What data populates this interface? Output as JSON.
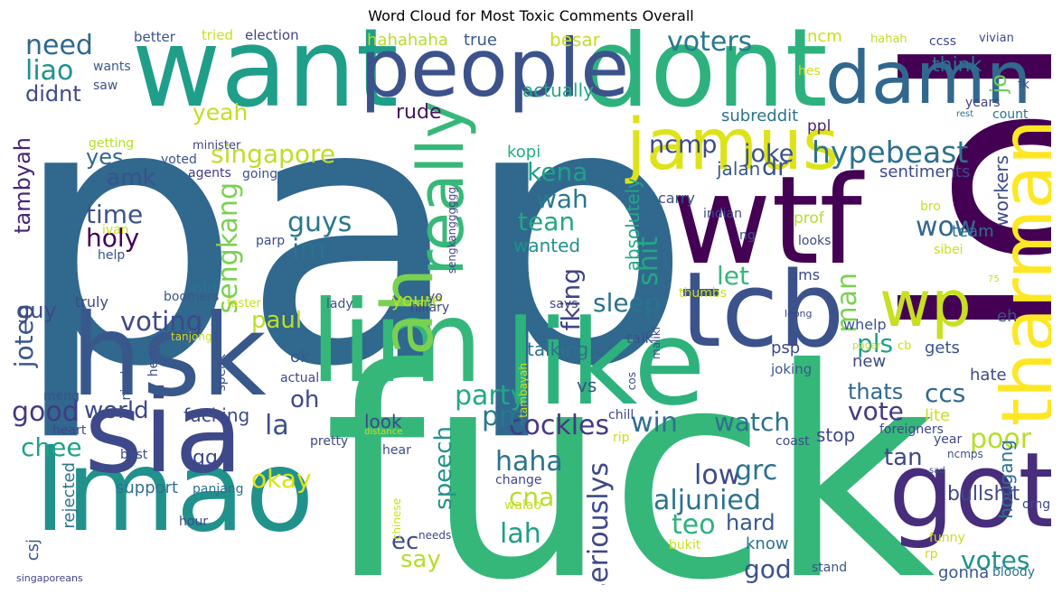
{
  "figure": {
    "title": "Word Cloud for Most Toxic Comments Overall"
  },
  "words": [
    {
      "text": "pap",
      "color": "#30688e"
    },
    {
      "text": "fuck",
      "color": "#35b779"
    },
    {
      "text": "lol",
      "color": "#440154"
    },
    {
      "text": "want",
      "color": "#1f9e89"
    },
    {
      "text": "dont",
      "color": "#2db27d"
    },
    {
      "text": "wtf",
      "color": "#440154"
    },
    {
      "text": "lmao",
      "color": "#21918c"
    },
    {
      "text": "sia",
      "color": "#3e4989"
    },
    {
      "text": "hsk",
      "color": "#38588c"
    },
    {
      "text": "like",
      "color": "#2db27d"
    },
    {
      "text": "people",
      "color": "#3b528b"
    },
    {
      "text": "lim",
      "color": "#35b779"
    },
    {
      "text": "tcb",
      "color": "#3b528b"
    },
    {
      "text": "got",
      "color": "#472d7b"
    },
    {
      "text": "jamus",
      "color": "#dde318"
    },
    {
      "text": "tharman",
      "color": "#fde725"
    },
    {
      "text": "damn",
      "color": "#31688e"
    },
    {
      "text": "really",
      "color": "#37b878"
    },
    {
      "text": "wp",
      "color": "#c8e020"
    },
    {
      "text": "ah",
      "color": "#7ad151"
    },
    {
      "text": "hypebeast",
      "color": "#2c728e"
    },
    {
      "text": "party",
      "color": "#22a884"
    },
    {
      "text": "cockles",
      "color": "#443a83"
    },
    {
      "text": "aljunied",
      "color": "#2c728e"
    },
    {
      "text": "voters",
      "color": "#2a788e"
    },
    {
      "text": "singapore",
      "color": "#bddf26"
    },
    {
      "text": "need",
      "color": "#31688e"
    },
    {
      "text": "liao",
      "color": "#21918c"
    },
    {
      "text": "didnt",
      "color": "#3e4989"
    },
    {
      "text": "yeah",
      "color": "#c2df23"
    },
    {
      "text": "amk",
      "color": "#3b528b"
    },
    {
      "text": "time",
      "color": "#3b528b"
    },
    {
      "text": "holy",
      "color": "#440154"
    },
    {
      "text": "yes",
      "color": "#31688e"
    },
    {
      "text": "guys",
      "color": "#2a788e"
    },
    {
      "text": "im",
      "color": "#2c728e"
    },
    {
      "text": "voting",
      "color": "#3e4989"
    },
    {
      "text": "paul",
      "color": "#bddf26"
    },
    {
      "text": "sengkang",
      "color": "#7ad151"
    },
    {
      "text": "ncmp",
      "color": "#3e4989"
    },
    {
      "text": "jalan",
      "color": "#38598c"
    },
    {
      "text": "dr",
      "color": "#3b528b"
    },
    {
      "text": "wah",
      "color": "#2a788e"
    },
    {
      "text": "kena",
      "color": "#1fa187"
    },
    {
      "text": "kopi",
      "color": "#26ad81"
    },
    {
      "text": "tean",
      "color": "#22a884"
    },
    {
      "text": "wanted",
      "color": "#21918c"
    },
    {
      "text": "shit",
      "color": "#22a884"
    },
    {
      "text": "joke",
      "color": "#3b528b"
    },
    {
      "text": "wow",
      "color": "#31688e"
    },
    {
      "text": "sleep",
      "color": "#2c728e"
    },
    {
      "text": "let",
      "color": "#35b779"
    },
    {
      "text": "man",
      "color": "#7ad151"
    },
    {
      "text": "tambyah",
      "color": "#482475"
    },
    {
      "text": "joteo",
      "color": "#39568c"
    },
    {
      "text": "guy",
      "color": "#3e4989"
    },
    {
      "text": "good",
      "color": "#443983"
    },
    {
      "text": "world",
      "color": "#3e4989"
    },
    {
      "text": "chee",
      "color": "#1fa187"
    },
    {
      "text": "pm",
      "color": "#2a788e"
    },
    {
      "text": "win",
      "color": "#2d708e"
    },
    {
      "text": "watch",
      "color": "#2c728e"
    },
    {
      "text": "vote",
      "color": "#443983"
    },
    {
      "text": "ccs",
      "color": "#31688e"
    },
    {
      "text": "thats",
      "color": "#31688e"
    },
    {
      "text": "poor",
      "color": "#b5de2b"
    },
    {
      "text": "tan",
      "color": "#3e4989"
    },
    {
      "text": "pls",
      "color": "#1fa187"
    },
    {
      "text": "la",
      "color": "#3b528b"
    },
    {
      "text": "oh",
      "color": "#3e4989"
    },
    {
      "text": "okay",
      "color": "#dde318"
    },
    {
      "text": "haha",
      "color": "#2c728e"
    },
    {
      "text": "speech",
      "color": "#21918c"
    },
    {
      "text": "lah",
      "color": "#1f9e89"
    },
    {
      "text": "low",
      "color": "#3e4989"
    },
    {
      "text": "grc",
      "color": "#2c728e"
    },
    {
      "text": "teo",
      "color": "#2db27d"
    },
    {
      "text": "hard",
      "color": "#38598c"
    },
    {
      "text": "votes",
      "color": "#21918c"
    },
    {
      "text": "god",
      "color": "#3b528b"
    },
    {
      "text": "seriouslys",
      "color": "#3e4989"
    },
    {
      "text": "fking",
      "color": "#414487"
    },
    {
      "text": "cna",
      "color": "#b5de2b"
    },
    {
      "text": "ec",
      "color": "#3e4989"
    },
    {
      "text": "say",
      "color": "#b5de2b"
    },
    {
      "text": "gg",
      "color": "#3e4989"
    },
    {
      "text": "hougang",
      "color": "#2c728e"
    },
    {
      "text": "bullshit",
      "color": "#3e4989"
    },
    {
      "text": "gonna",
      "color": "#39568c"
    },
    {
      "text": "eh",
      "color": "#3b528b"
    },
    {
      "text": "jo",
      "color": "#6ccd5a"
    },
    {
      "text": "workers",
      "color": "#3e4989"
    },
    {
      "text": "sentiments",
      "color": "#3e4989"
    },
    {
      "text": "subreddit",
      "color": "#2c728e"
    },
    {
      "text": "actually",
      "color": "#22a884"
    },
    {
      "text": "rude",
      "color": "#471164"
    },
    {
      "text": "true",
      "color": "#38598c"
    },
    {
      "text": "hahahaha",
      "color": "#b5de2b"
    },
    {
      "text": "besar",
      "color": "#c2df23"
    },
    {
      "text": "ncm",
      "color": "#c8e020"
    },
    {
      "text": "think",
      "color": "#2c728e"
    },
    {
      "text": "better",
      "color": "#3b528b"
    },
    {
      "text": "tried",
      "color": "#c8e020"
    },
    {
      "text": "election",
      "color": "#414487"
    },
    {
      "text": "ccss",
      "color": "#3e4989"
    },
    {
      "text": "hahah",
      "color": "#c2df23"
    },
    {
      "text": "vivian",
      "color": "#3e4989"
    },
    {
      "text": "wants",
      "color": "#38598c"
    },
    {
      "text": "saw",
      "color": "#3b528b"
    },
    {
      "text": "hes",
      "color": "#c8e020"
    },
    {
      "text": "years",
      "color": "#414487"
    },
    {
      "text": "rest",
      "color": "#2c728e"
    },
    {
      "text": "count",
      "color": "#2c728e"
    },
    {
      "text": "fk",
      "color": "#3e4989"
    },
    {
      "text": "ppl",
      "color": "#482475"
    },
    {
      "text": "getting",
      "color": "#b5de2b"
    },
    {
      "text": "voted",
      "color": "#3b528b"
    },
    {
      "text": "minister",
      "color": "#414487"
    },
    {
      "text": "agents",
      "color": "#443983"
    },
    {
      "text": "going",
      "color": "#3b528b"
    },
    {
      "text": "ivan",
      "color": "#c8e020"
    },
    {
      "text": "sengkangggggg",
      "color": "#414487"
    },
    {
      "text": "parp",
      "color": "#3e4989"
    },
    {
      "text": "help",
      "color": "#3b528b"
    },
    {
      "text": "carry",
      "color": "#3b528b"
    },
    {
      "text": "indian",
      "color": "#3e4989"
    },
    {
      "text": "prof",
      "color": "#b5de2b"
    },
    {
      "text": "absolutely",
      "color": "#22a884"
    },
    {
      "text": "team",
      "color": "#2c728e"
    },
    {
      "text": "bro",
      "color": "#c8e020"
    },
    {
      "text": "sibei",
      "color": "#c8e020"
    },
    {
      "text": "looks",
      "color": "#3e4989"
    },
    {
      "text": "ng",
      "color": "#3b528b"
    },
    {
      "text": "gms",
      "color": "#3e4989"
    },
    {
      "text": "thumbs",
      "color": "#c8e020"
    },
    {
      "text": "75",
      "color": "#c8e020"
    },
    {
      "text": "whelp",
      "color": "#3b528b"
    },
    {
      "text": "leong",
      "color": "#414487"
    },
    {
      "text": "pagar",
      "color": "#c8e020"
    },
    {
      "text": "new",
      "color": "#3e4989"
    },
    {
      "text": "old",
      "color": "#2c728e"
    },
    {
      "text": "youre",
      "color": "#b5de2b"
    },
    {
      "text": "truly",
      "color": "#3e4989"
    },
    {
      "text": "boomers",
      "color": "#38598c"
    },
    {
      "text": "faster",
      "color": "#c8e020"
    },
    {
      "text": "lady",
      "color": "#3b528b"
    },
    {
      "text": "yo",
      "color": "#3e4989"
    },
    {
      "text": "hillary",
      "color": "#414487"
    },
    {
      "text": "says",
      "color": "#3e4989"
    },
    {
      "text": "tanjong",
      "color": "#c8e020"
    },
    {
      "text": "heng",
      "color": "#3b528b"
    },
    {
      "text": "nicole",
      "color": "#3b528b"
    },
    {
      "text": "speak",
      "color": "#3b528b"
    },
    {
      "text": "actual",
      "color": "#3e4989"
    },
    {
      "text": "ok",
      "color": "#38598c"
    },
    {
      "text": "talking",
      "color": "#2c728e"
    },
    {
      "text": "tambayah",
      "color": "#c8e020"
    },
    {
      "text": "maliki",
      "color": "#3e4989"
    },
    {
      "text": "cos",
      "color": "#3e4989"
    },
    {
      "text": "talk",
      "color": "#3b528b"
    },
    {
      "text": "vs",
      "color": "#3b528b"
    },
    {
      "text": "psp",
      "color": "#3e4989"
    },
    {
      "text": "cb",
      "color": "#c8e020"
    },
    {
      "text": "gets",
      "color": "#3b528b"
    },
    {
      "text": "joking",
      "color": "#38598c"
    },
    {
      "text": "hate",
      "color": "#3e4989"
    },
    {
      "text": "lite",
      "color": "#c8e020"
    },
    {
      "text": "stop",
      "color": "#3e4989"
    },
    {
      "text": "foreigners",
      "color": "#3e4989"
    },
    {
      "text": "ncmps",
      "color": "#3b528b"
    },
    {
      "text": "coast",
      "color": "#3e4989"
    },
    {
      "text": "year",
      "color": "#3e4989"
    },
    {
      "text": "sad",
      "color": "#3b528b"
    },
    {
      "text": "omg",
      "color": "#3e4989"
    },
    {
      "text": "funny",
      "color": "#c8e020"
    },
    {
      "text": "rp",
      "color": "#c8e020"
    },
    {
      "text": "stand",
      "color": "#3b528b"
    },
    {
      "text": "bloody",
      "color": "#2c728e"
    },
    {
      "text": "meng",
      "color": "#3b528b"
    },
    {
      "text": "heart",
      "color": "#3e4989"
    },
    {
      "text": "distance",
      "color": "#c8e020"
    },
    {
      "text": "best",
      "color": "#3e4989"
    },
    {
      "text": "pretty",
      "color": "#3e4989"
    },
    {
      "text": "hear",
      "color": "#3e4989"
    },
    {
      "text": "chill",
      "color": "#3e4989"
    },
    {
      "text": "rip",
      "color": "#c8e020"
    },
    {
      "text": "look",
      "color": "#3e4989"
    },
    {
      "text": "fucking",
      "color": "#3e4989"
    },
    {
      "text": "support",
      "color": "#2c728e"
    },
    {
      "text": "panjang",
      "color": "#2c728e"
    },
    {
      "text": "change",
      "color": "#3e4989"
    },
    {
      "text": "walao",
      "color": "#c8e020"
    },
    {
      "text": "bukit",
      "color": "#c8e020"
    },
    {
      "text": "know",
      "color": "#2c728e"
    },
    {
      "text": "csj",
      "color": "#3b528b"
    },
    {
      "text": "rejected",
      "color": "#2c728e"
    },
    {
      "text": "hour",
      "color": "#3e4989"
    },
    {
      "text": "chinese",
      "color": "#c8e020"
    },
    {
      "text": "needs",
      "color": "#3e4989"
    },
    {
      "text": "singaporeans",
      "color": "#414487"
    }
  ]
}
